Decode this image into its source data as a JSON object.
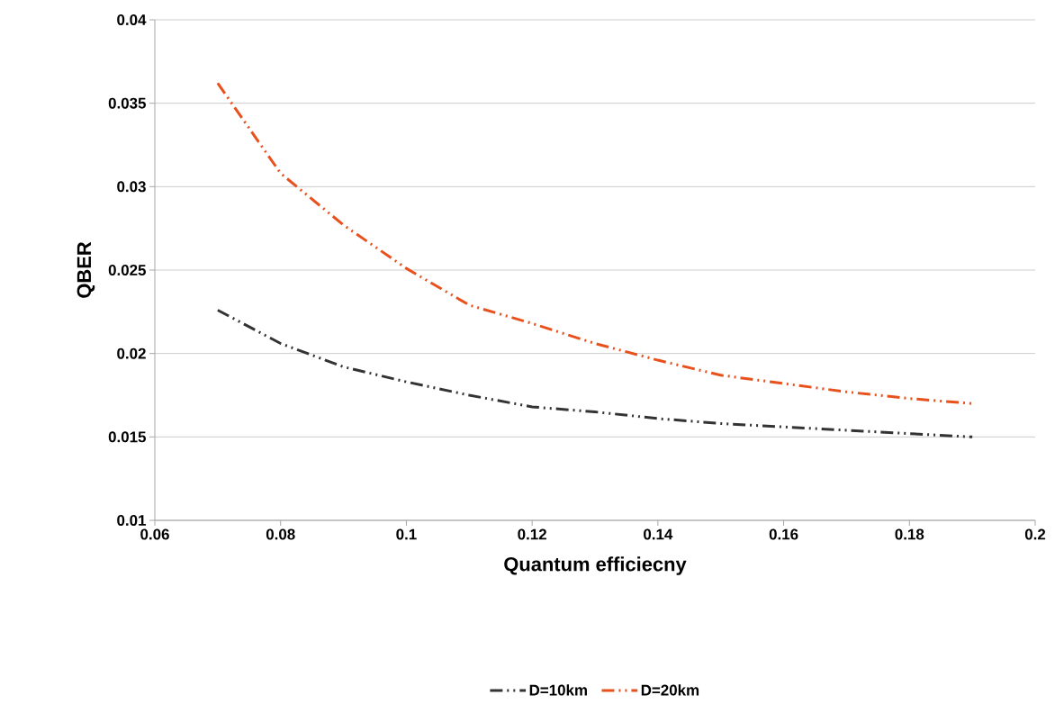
{
  "chart_data": {
    "type": "line",
    "xlabel": "Quantum efficiecny",
    "ylabel": "QBER",
    "x": [
      0.07,
      0.08,
      0.09,
      0.1,
      0.11,
      0.12,
      0.13,
      0.14,
      0.15,
      0.16,
      0.17,
      0.18,
      0.19
    ],
    "series": [
      {
        "name": "D=10km",
        "color": "#333333",
        "values": [
          0.0226,
          0.0206,
          0.0192,
          0.0183,
          0.0175,
          0.0168,
          0.0165,
          0.0161,
          0.0158,
          0.0156,
          0.0154,
          0.0152,
          0.015
        ]
      },
      {
        "name": "D=20km",
        "color": "#e8501c",
        "values": [
          0.0362,
          0.0308,
          0.0277,
          0.0251,
          0.0229,
          0.0218,
          0.0206,
          0.0196,
          0.0187,
          0.0182,
          0.0177,
          0.0173,
          0.017
        ]
      }
    ],
    "xlim": [
      0.06,
      0.2
    ],
    "xticks": [
      0.06,
      0.08,
      0.1,
      0.12,
      0.14,
      0.16,
      0.18,
      0.2
    ],
    "ylim": [
      0.01,
      0.04
    ],
    "yticks": [
      0.01,
      0.015,
      0.02,
      0.025,
      0.03,
      0.035,
      0.04
    ],
    "grid": "y",
    "legend": "bottom",
    "marker": "none",
    "line_style": "dashed"
  }
}
